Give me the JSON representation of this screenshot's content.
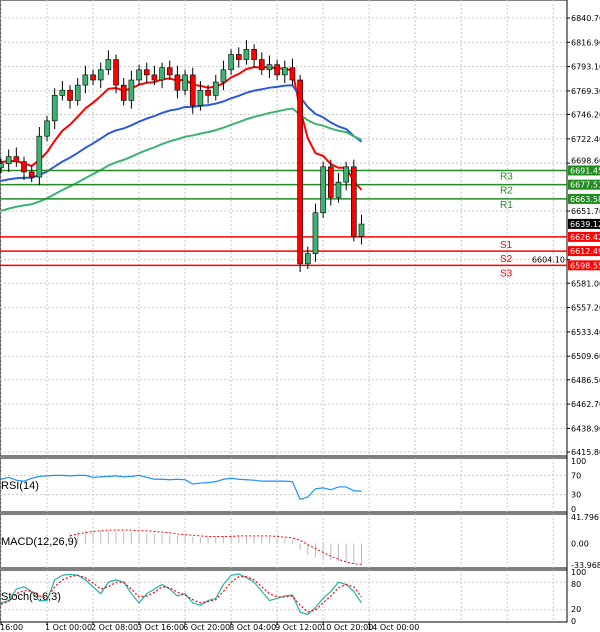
{
  "chart_data": {
    "type": "candlestick",
    "price_axis": {
      "min": 6415.8,
      "max": 6840.7,
      "ticks": [
        "6840.70",
        "6816.90",
        "6793.10",
        "6769.30",
        "6746.20",
        "6722.40",
        "6698.60",
        "6651.70",
        "6604.10",
        "6581.00",
        "6557.20",
        "6533.40",
        "6509.60",
        "6486.50",
        "6462.70",
        "6438.90",
        "6415.80"
      ]
    },
    "time_labels": [
      "16:00",
      "1 Oct 00:00",
      "2 Oct 08:00",
      "3 Oct 16:00",
      "6 Oct 20:00",
      "8 Oct 04:00",
      "9 Oct 12:00",
      "10 Oct 20:00",
      "14 Oct 00:00"
    ],
    "closes": [
      6698,
      6705,
      6700,
      6690,
      6685,
      6725,
      6740,
      6765,
      6770,
      6760,
      6775,
      6785,
      6780,
      6790,
      6800,
      6775,
      6760,
      6780,
      6790,
      6785,
      6780,
      6792,
      6785,
      6770,
      6785,
      6755,
      6770,
      6765,
      6778,
      6790,
      6805,
      6800,
      6810,
      6800,
      6790,
      6795,
      6785,
      6792,
      6780,
      6600,
      6610,
      6650,
      6695,
      6665,
      6680,
      6695,
      6627,
      6639
    ],
    "current_price": "6639.12",
    "ma_colors": [
      "#ff0000",
      "#2d5ad8",
      "#3cb371"
    ],
    "levels": [
      {
        "name": "R3",
        "value": "6691.45",
        "color": "#228b22"
      },
      {
        "name": "R2",
        "value": "6677.51",
        "color": "#228b22"
      },
      {
        "name": "R1",
        "value": "6663.58",
        "color": "#228b22"
      },
      {
        "name": "S1",
        "value": "6626.42",
        "color": "#ff0000"
      },
      {
        "name": "S2",
        "value": "6612.49",
        "color": "#ff0000"
      },
      {
        "name": "S3",
        "value": "6598.55",
        "color": "#ff0000"
      }
    ],
    "rsi": {
      "label": "RSI(14)",
      "ticks": [
        "100",
        "70",
        "30",
        "0"
      ],
      "values": [
        62,
        66,
        60,
        58,
        64,
        68,
        69,
        70,
        70,
        69,
        70,
        70,
        66,
        67,
        68,
        69,
        67,
        68,
        70,
        66,
        62,
        62,
        61,
        62,
        61,
        52,
        54,
        55,
        57,
        62,
        64,
        62,
        61,
        60,
        58,
        58,
        58,
        58,
        57,
        20,
        25,
        42,
        44,
        40,
        46,
        46,
        38,
        37
      ]
    },
    "macd": {
      "label": "MACD(12,26,9)",
      "ticks": [
        "41.796",
        "0.00",
        "-33.968"
      ],
      "hist": [
        0,
        0,
        0,
        0,
        0,
        0,
        0,
        0,
        0,
        16,
        18,
        20,
        20,
        20,
        20,
        19,
        18,
        18,
        17,
        16,
        15,
        14,
        13,
        12,
        12,
        10,
        10,
        10,
        10,
        11,
        12,
        12,
        12,
        12,
        11,
        10,
        9,
        8,
        6,
        -10,
        -18,
        -22,
        -24,
        -26,
        -28,
        -30,
        -32,
        -33
      ],
      "signal": [
        0,
        0,
        0,
        0,
        0,
        0,
        0,
        0,
        0,
        12,
        15,
        17,
        19,
        20,
        21,
        21,
        21,
        21,
        20,
        20,
        19,
        18,
        17,
        15,
        14,
        13,
        12,
        11,
        11,
        11,
        11,
        12,
        12,
        12,
        12,
        12,
        11,
        10,
        9,
        5,
        -2,
        -8,
        -14,
        -20,
        -25,
        -29,
        -32,
        -33
      ]
    },
    "stoch": {
      "label": "Stoch(9,6,3)",
      "ticks": [
        "100",
        "80",
        "20",
        "0"
      ],
      "k": [
        35,
        40,
        65,
        70,
        60,
        40,
        40,
        85,
        95,
        97,
        95,
        85,
        70,
        55,
        80,
        85,
        80,
        55,
        35,
        55,
        65,
        75,
        65,
        50,
        55,
        35,
        30,
        40,
        45,
        75,
        95,
        98,
        90,
        80,
        60,
        40,
        45,
        50,
        52,
        15,
        10,
        25,
        45,
        60,
        80,
        75,
        60,
        35
      ],
      "d": [
        32,
        38,
        55,
        62,
        60,
        50,
        45,
        70,
        85,
        92,
        95,
        90,
        78,
        65,
        70,
        80,
        80,
        65,
        48,
        50,
        58,
        70,
        68,
        58,
        52,
        42,
        35,
        38,
        42,
        60,
        80,
        92,
        92,
        85,
        70,
        55,
        48,
        48,
        50,
        30,
        15,
        20,
        35,
        50,
        68,
        75,
        70,
        48
      ]
    }
  }
}
